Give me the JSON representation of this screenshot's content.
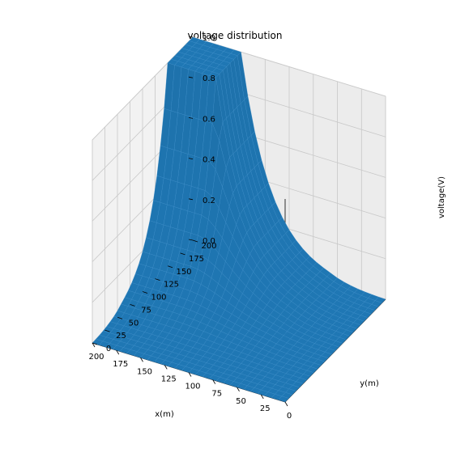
{
  "chart_data": {
    "type": "surface",
    "title": "voltage distribution",
    "xlabel": "x(m)",
    "ylabel": "y(m)",
    "zlabel": "voltage(V)",
    "xlim": [
      0,
      200
    ],
    "ylim": [
      0,
      200
    ],
    "zlim": [
      0,
      1.0
    ],
    "x_ticks": [
      0,
      25,
      50,
      75,
      100,
      125,
      150,
      175,
      200
    ],
    "y_ticks": [
      0,
      25,
      50,
      75,
      100,
      125,
      150,
      175,
      200
    ],
    "z_ticks": [
      "0.0",
      "0.2",
      "0.4",
      "0.6",
      "0.8",
      "1.0"
    ],
    "grid": true,
    "surface_color": "#1f77b4",
    "plateau": {
      "x_range": [
        150,
        200
      ],
      "y_range": [
        150,
        200
      ],
      "voltage": 1.0
    },
    "boundary_voltage": 0.0,
    "profile_along_edge_y_200": {
      "x": [
        0,
        25,
        50,
        75,
        100,
        125,
        150
      ],
      "voltage": [
        0.0,
        0.02,
        0.07,
        0.15,
        0.3,
        0.55,
        1.0
      ]
    },
    "profile_along_edge_x_200": {
      "y": [
        0,
        25,
        50,
        75,
        100,
        125,
        150
      ],
      "voltage": [
        0.0,
        0.02,
        0.07,
        0.15,
        0.3,
        0.55,
        1.0
      ]
    }
  }
}
